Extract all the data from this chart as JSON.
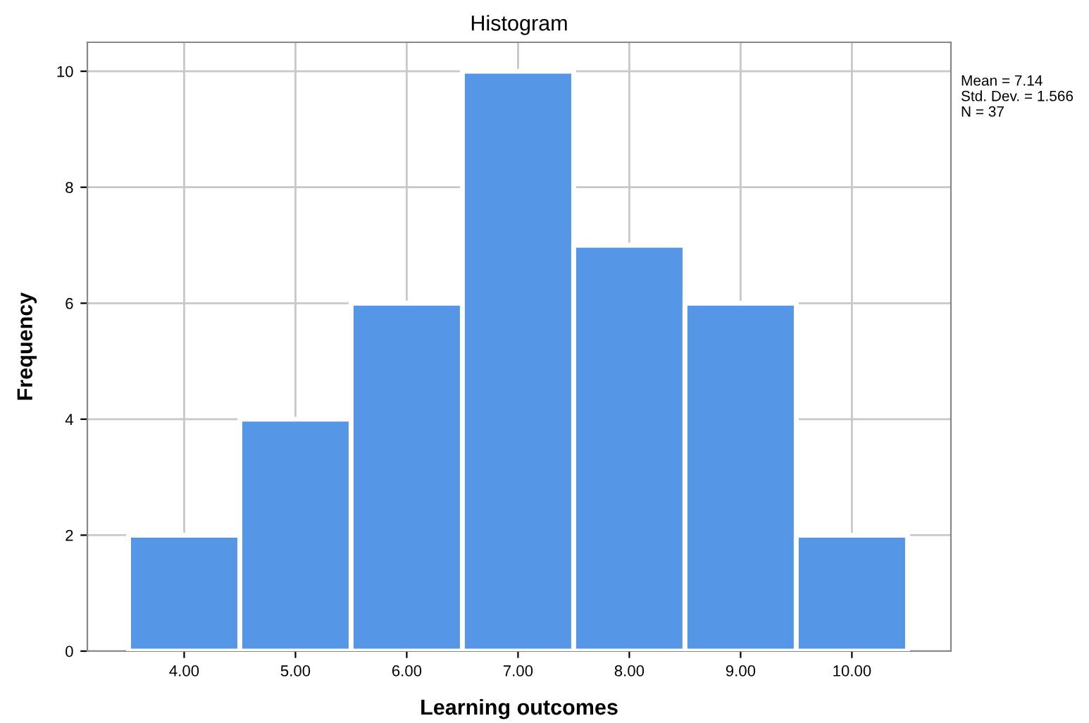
{
  "chart_data": {
    "type": "histogram",
    "title": "Histogram",
    "xlabel": "Learning outcomes",
    "ylabel": "Frequency",
    "bins": [
      3.5,
      4.5,
      5.5,
      6.5,
      7.5,
      8.5,
      9.5,
      10.5
    ],
    "values": [
      2,
      4,
      6,
      10,
      7,
      6,
      2
    ],
    "color": "#5596e6",
    "xlim": [
      3.13,
      10.89
    ],
    "ylim": [
      0,
      10.5
    ],
    "xticks": [
      {
        "value": 4,
        "label": "4.00"
      },
      {
        "value": 5,
        "label": "5.00"
      },
      {
        "value": 6,
        "label": "6.00"
      },
      {
        "value": 7,
        "label": "7.00"
      },
      {
        "value": 8,
        "label": "8.00"
      },
      {
        "value": 9,
        "label": "9.00"
      },
      {
        "value": 10,
        "label": "10.00"
      }
    ],
    "yticks": [
      0,
      2,
      4,
      6,
      8,
      10
    ],
    "grid": true,
    "annotations": [
      "Mean = 7.14",
      "Std. Dev. = 1.566",
      "N = 37"
    ]
  }
}
